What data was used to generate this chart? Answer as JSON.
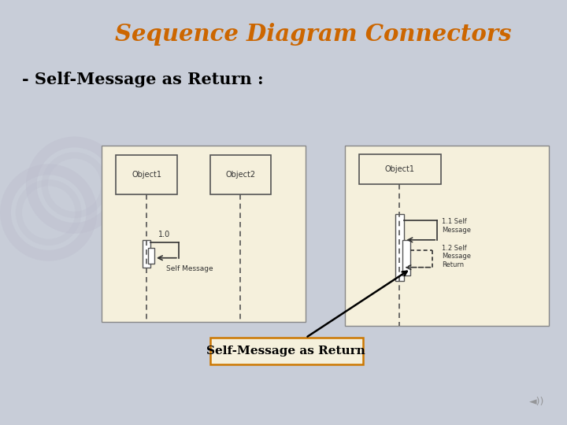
{
  "title": "Sequence Diagram Connectors",
  "subtitle": "- Self-Message as Return :",
  "label_bottom": "Self-Message as Return",
  "title_color": "#CC6600",
  "subtitle_color": "#000000",
  "bg_color": "#C8CDD8",
  "panel_bg": "#F5F0DC",
  "panel_border": "#888888",
  "text_color": "#333333",
  "watermark_color": "#BBBBCC"
}
